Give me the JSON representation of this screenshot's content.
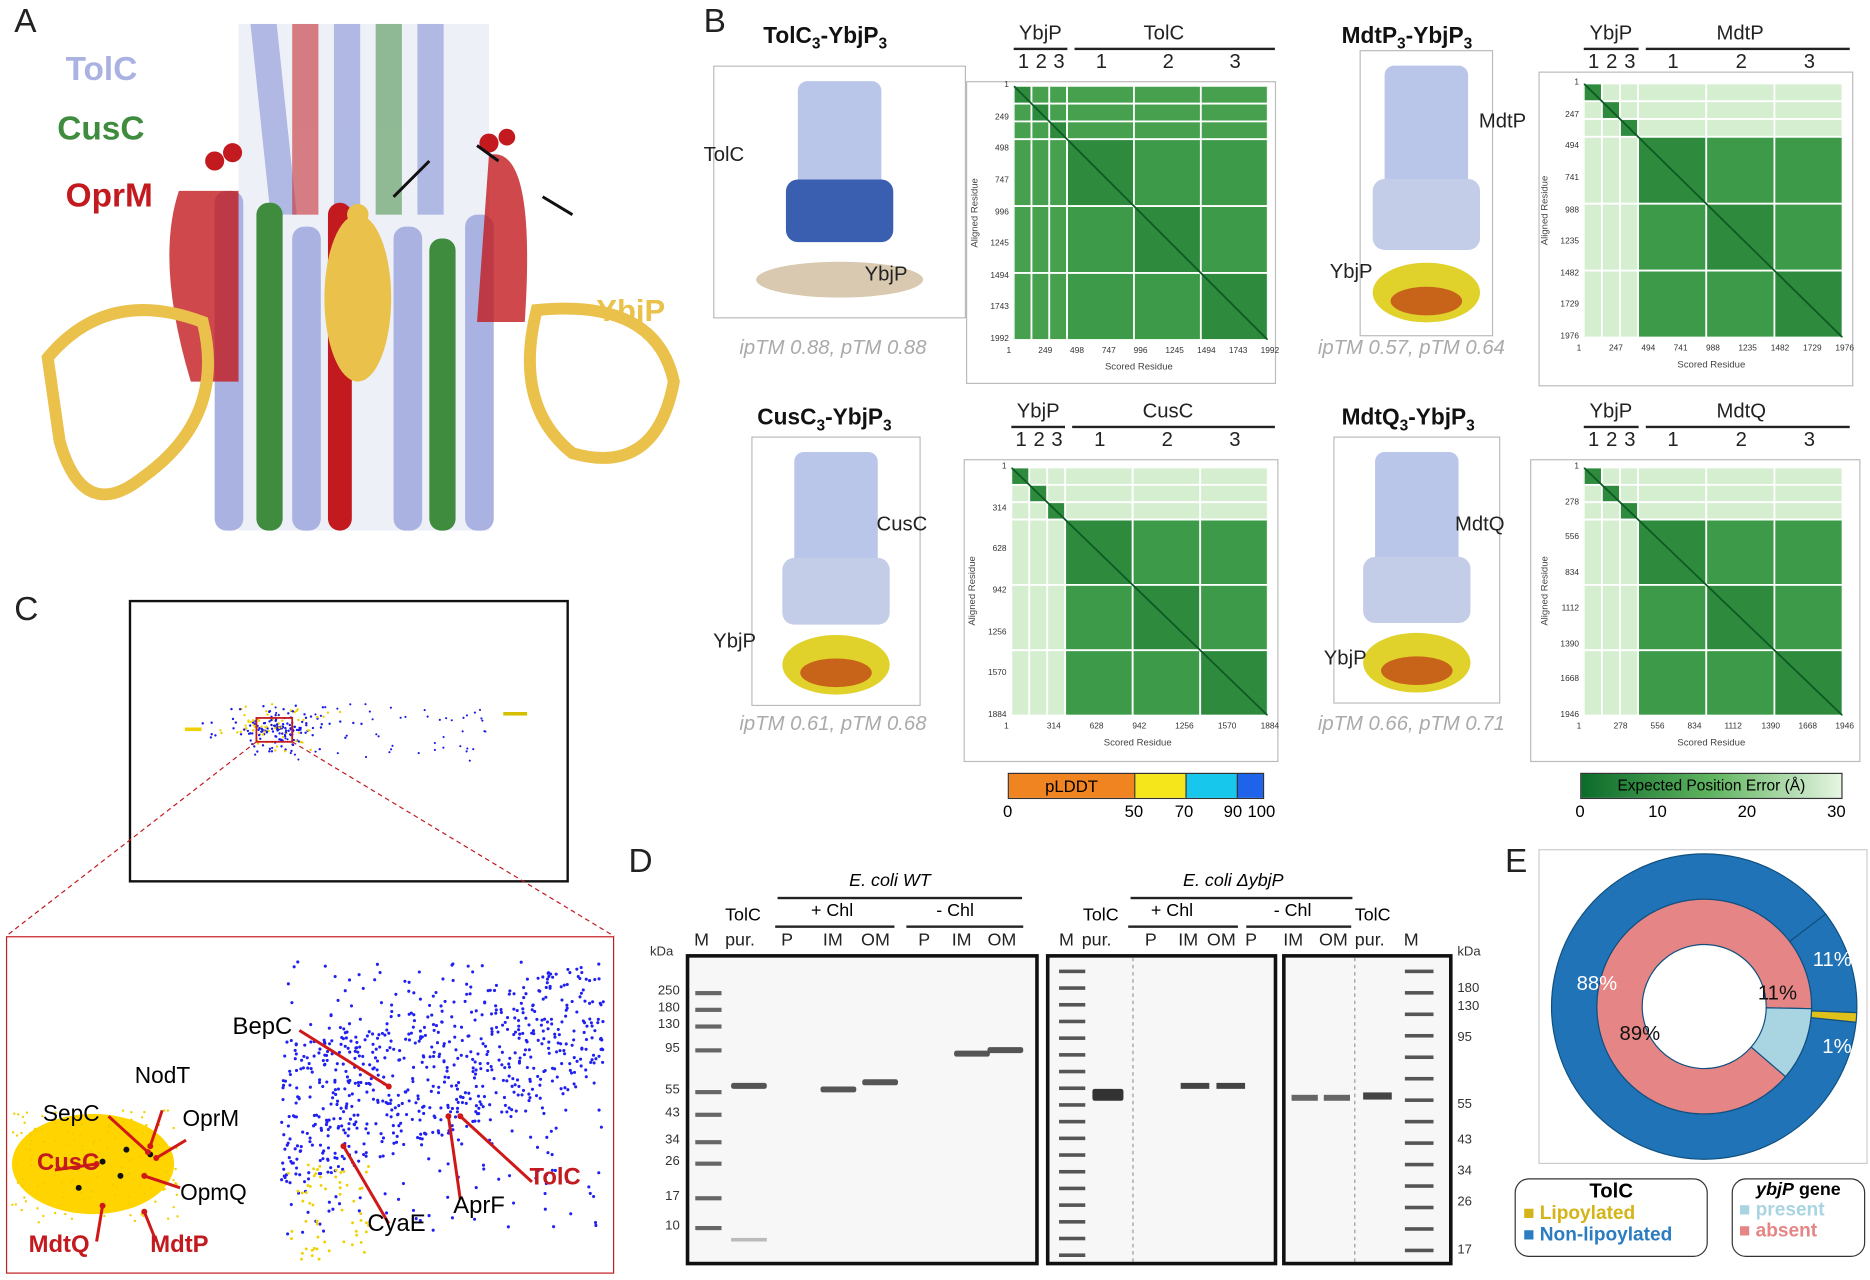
{
  "panels": {
    "a": "A",
    "b": "B",
    "c": "C",
    "d": "D",
    "e": "E"
  },
  "panel_a": {
    "labels": {
      "tolc": "TolC",
      "cusc": "CusC",
      "oprm": "OprM",
      "ybjp": "YbjP"
    },
    "colors": {
      "tolc": "#aab2e2",
      "cusc": "#3f8c3f",
      "oprm": "#c21a1f",
      "ybjp": "#e9c14b"
    }
  },
  "panel_b": {
    "complexes": [
      {
        "title": "TolC",
        "sub1": "3",
        "mid": "-YbjP",
        "sub2": "3",
        "partner": "TolC",
        "ybjp": "YbjP",
        "score": "ipTM 0.88, pTM 0.88",
        "header": {
          "ybjp": "YbjP",
          "partner": "TolC",
          "chains": [
            "1",
            "2",
            "3",
            "1",
            "2",
            "3"
          ]
        },
        "ticks": [
          "1",
          "249",
          "498",
          "747",
          "996",
          "1245",
          "1494",
          "1743",
          "1992"
        ],
        "ybjp_confident": true
      },
      {
        "title": "MdtP",
        "sub1": "3",
        "mid": "-YbjP",
        "sub2": "3",
        "partner": "MdtP",
        "ybjp": "YbjP",
        "score": "ipTM 0.57, pTM 0.64",
        "header": {
          "ybjp": "YbjP",
          "partner": "MdtP",
          "chains": [
            "1",
            "2",
            "3",
            "1",
            "2",
            "3"
          ]
        },
        "ticks": [
          "1",
          "247",
          "494",
          "741",
          "988",
          "1235",
          "1482",
          "1729",
          "1976"
        ],
        "ybjp_confident": false
      },
      {
        "title": "CusC",
        "sub1": "3",
        "mid": "-YbjP",
        "sub2": "3",
        "partner": "CusC",
        "ybjp": "YbjP",
        "score": "ipTM 0.61, pTM 0.68",
        "header": {
          "ybjp": "YbjP",
          "partner": "CusC",
          "chains": [
            "1",
            "2",
            "3",
            "1",
            "2",
            "3"
          ]
        },
        "ticks": [
          "1",
          "314",
          "628",
          "942",
          "1256",
          "1570",
          "1884"
        ],
        "ybjp_confident": false
      },
      {
        "title": "MdtQ",
        "sub1": "3",
        "mid": "-YbjP",
        "sub2": "3",
        "partner": "MdtQ",
        "ybjp": "YbjP",
        "score": "ipTM 0.66, pTM 0.71",
        "header": {
          "ybjp": "YbjP",
          "partner": "MdtQ",
          "chains": [
            "1",
            "2",
            "3",
            "1",
            "2",
            "3"
          ]
        },
        "ticks": [
          "1",
          "278",
          "556",
          "834",
          "1112",
          "1390",
          "1668",
          "1946"
        ],
        "ybjp_confident": false
      }
    ],
    "xlabel": "Scored Residue",
    "ylabel": "Aligned Residue",
    "plddt": {
      "label": "pLDDT",
      "ticks": [
        "0",
        "50",
        "70",
        "90",
        "100"
      ],
      "colors": [
        "#ef8421",
        "#f5e61b",
        "#18c8ec",
        "#1f63ea"
      ]
    },
    "pae": {
      "label": "Expected Position Error (Å)",
      "ticks": [
        "0",
        "10",
        "20",
        "30"
      ]
    }
  },
  "panel_c": {
    "labels": {
      "bepc": "BepC",
      "nodt": "NodT",
      "sepc": "SepC",
      "oprm": "OprM",
      "cusc": "CusC",
      "opmq": "OpmQ",
      "mdtq": "MdtQ",
      "mdtp": "MdtP",
      "cyae": "CyaE",
      "aprf": "AprF",
      "tolc": "TolC"
    }
  },
  "panel_d": {
    "wt": "E. coli WT",
    "mut_prefix": "E. coli ",
    "mut": "ΔybjP",
    "plus": "+ Chl",
    "minus": "- Chl",
    "tolc": "TolC",
    "lanes1": [
      "M",
      "pur.",
      "P",
      "IM",
      "OM",
      "P",
      "IM",
      "OM"
    ],
    "lanes2": [
      "M",
      "pur.",
      "P",
      "IM",
      "OM",
      "P",
      "IM",
      "OM",
      "pur.",
      "M"
    ],
    "kda": "kDa",
    "markers_left": [
      "250",
      "180",
      "130",
      "95",
      "55",
      "43",
      "34",
      "26",
      "17",
      "10"
    ],
    "markers_right": [
      "180",
      "130",
      "95",
      "55",
      "43",
      "34",
      "26",
      "17"
    ]
  },
  "panel_e": {
    "outer": [
      {
        "label": "88%",
        "value": 88,
        "color": "#1f73b6"
      },
      {
        "label": "11%",
        "value": 11,
        "color": "#1f73b6"
      },
      {
        "label": "1%",
        "value": 1,
        "color": "#e0c01a"
      }
    ],
    "inner": [
      {
        "label": "89%",
        "value": 89,
        "color": "#e58585"
      },
      {
        "label": "11%",
        "value": 11,
        "color": "#a9d4e2"
      }
    ],
    "legend1": {
      "title": "TolC",
      "items": [
        {
          "label": "Lipoylated",
          "color": "#d4b417"
        },
        {
          "label": "Non-lipoylated",
          "color": "#2b7cc0"
        }
      ]
    },
    "legend2": {
      "title_italic": "ybjP",
      "title_rest": " gene",
      "items": [
        {
          "label": "present",
          "color": "#a9d4e2"
        },
        {
          "label": "absent",
          "color": "#e58585"
        }
      ]
    }
  }
}
